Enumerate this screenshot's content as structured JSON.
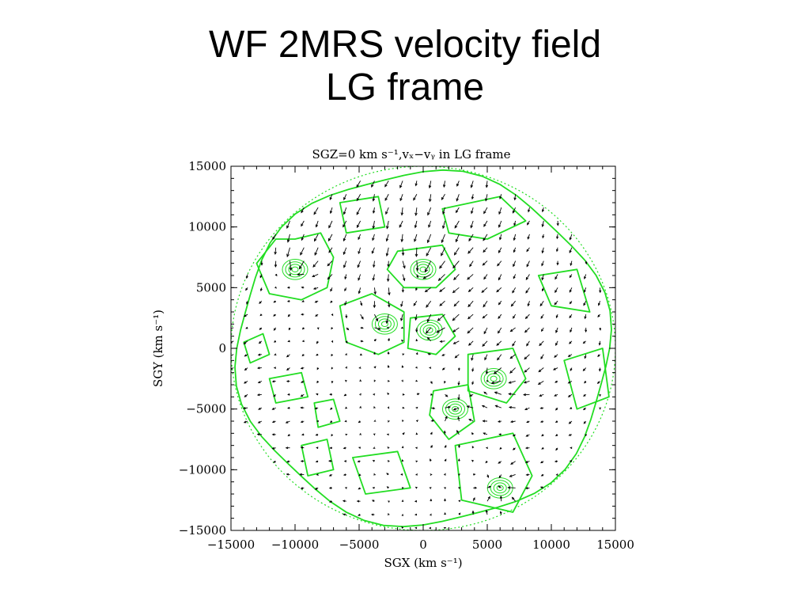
{
  "slide": {
    "title_line1": "WF 2MRS velocity field",
    "title_line2": "LG frame"
  },
  "chart_data": {
    "type": "scatter",
    "title": "SGZ=0 km s⁻¹,vₓ−vᵧ in LG frame",
    "xlabel": "SGX (km s⁻¹)",
    "ylabel": "SGY (km s⁻¹)",
    "xlim": [
      -15000,
      15000
    ],
    "ylim": [
      -15000,
      15000
    ],
    "xticks": [
      "−15000",
      "−10000",
      "−5000",
      "0",
      "5000",
      "10000",
      "15000"
    ],
    "yticks": [
      "−15000",
      "−10000",
      "−5000",
      "0",
      "5000",
      "10000",
      "15000"
    ],
    "survey_radius": 15000,
    "arrow_color": "#000000",
    "contour_color": "#22dd22",
    "grid": false,
    "convergence_centers": [
      {
        "x": -10000,
        "y": 6500
      },
      {
        "x": 0,
        "y": 6500
      },
      {
        "x": -3000,
        "y": 2000
      },
      {
        "x": 500,
        "y": 1500
      },
      {
        "x": 5500,
        "y": -2500
      },
      {
        "x": 2500,
        "y": -5000
      },
      {
        "x": 6000,
        "y": -11500
      }
    ],
    "contours": [
      [
        [
          -10000,
          9000
        ],
        [
          -8000,
          9500
        ],
        [
          -7000,
          7500
        ],
        [
          -7500,
          5000
        ],
        [
          -9500,
          4000
        ],
        [
          -12000,
          4500
        ],
        [
          -13000,
          7000
        ],
        [
          -11500,
          9000
        ]
      ],
      [
        [
          -2000,
          8000
        ],
        [
          1500,
          8500
        ],
        [
          2500,
          6500
        ],
        [
          1000,
          5000
        ],
        [
          -1500,
          5000
        ],
        [
          -2800,
          6500
        ]
      ],
      [
        [
          -6500,
          3500
        ],
        [
          -4000,
          4500
        ],
        [
          -1500,
          3000
        ],
        [
          -1500,
          500
        ],
        [
          -3500,
          -500
        ],
        [
          -6000,
          500
        ]
      ],
      [
        [
          -1000,
          2500
        ],
        [
          1500,
          2800
        ],
        [
          2500,
          1000
        ],
        [
          1000,
          -500
        ],
        [
          -1200,
          0
        ]
      ],
      [
        [
          3500,
          -500
        ],
        [
          7000,
          0
        ],
        [
          8000,
          -2500
        ],
        [
          6500,
          -4500
        ],
        [
          3500,
          -3500
        ]
      ],
      [
        [
          800,
          -3500
        ],
        [
          3500,
          -3000
        ],
        [
          4000,
          -6000
        ],
        [
          2000,
          -7500
        ],
        [
          500,
          -5500
        ]
      ],
      [
        [
          2500,
          -8000
        ],
        [
          7000,
          -7000
        ],
        [
          8500,
          -10500
        ],
        [
          7000,
          -13500
        ],
        [
          3000,
          -12500
        ]
      ],
      [
        [
          -14000,
          500
        ],
        [
          -12500,
          1200
        ],
        [
          -12000,
          -500
        ],
        [
          -13500,
          -1200
        ]
      ],
      [
        [
          -8500,
          -4500
        ],
        [
          -7000,
          -4200
        ],
        [
          -6500,
          -6000
        ],
        [
          -8200,
          -6500
        ]
      ],
      [
        [
          -9500,
          -8000
        ],
        [
          -7500,
          -7500
        ],
        [
          -7000,
          -10000
        ],
        [
          -9000,
          -10500
        ]
      ],
      [
        [
          -5500,
          -9000
        ],
        [
          -2000,
          -8500
        ],
        [
          -1000,
          -11500
        ],
        [
          -4500,
          -12000
        ]
      ],
      [
        [
          1500,
          11500
        ],
        [
          6000,
          12500
        ],
        [
          8000,
          10500
        ],
        [
          5000,
          9000
        ],
        [
          2000,
          9500
        ]
      ],
      [
        [
          -6500,
          12000
        ],
        [
          -3500,
          12500
        ],
        [
          -3000,
          10000
        ],
        [
          -6000,
          9500
        ]
      ],
      [
        [
          9000,
          6000
        ],
        [
          12000,
          6500
        ],
        [
          13000,
          3000
        ],
        [
          10000,
          3500
        ]
      ],
      [
        [
          11000,
          -1000
        ],
        [
          14000,
          0
        ],
        [
          14500,
          -4000
        ],
        [
          12000,
          -5000
        ]
      ],
      [
        [
          -12000,
          -2500
        ],
        [
          -9500,
          -2000
        ],
        [
          -9000,
          -4000
        ],
        [
          -11500,
          -4500
        ]
      ]
    ]
  }
}
